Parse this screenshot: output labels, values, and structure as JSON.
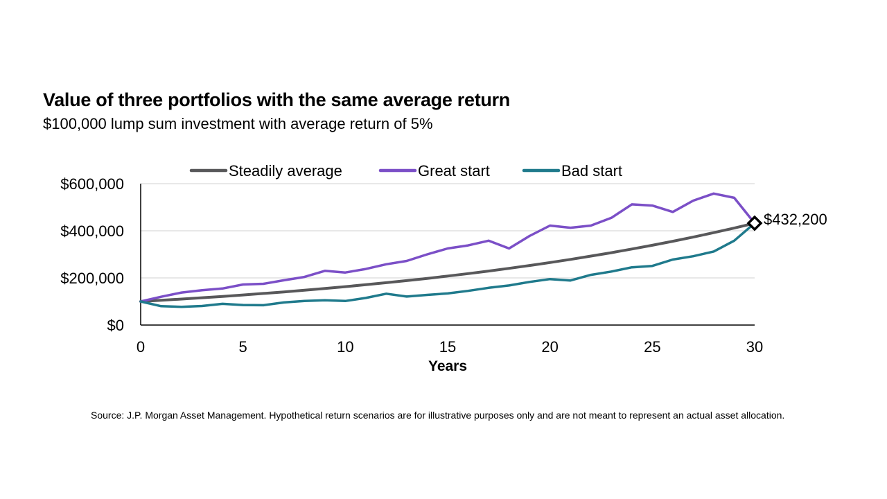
{
  "title": "Value of three portfolios with the same average return",
  "subtitle": "$100,000 lump sum investment with average return of 5%",
  "source": "Source: J.P. Morgan Asset Management. Hypothetical return scenarios are for illustrative purposes only and are not meant to represent an actual asset allocation.",
  "colors": {
    "steady": "#58585a",
    "great": "#7b4fc7",
    "bad": "#1f7a8c",
    "grid": "#d0d0d0",
    "axis": "#000000"
  },
  "chart_data": {
    "type": "line",
    "xlabel": "Years",
    "ylabel": "",
    "xlim": [
      0,
      30
    ],
    "ylim": [
      0,
      600000
    ],
    "x_ticks": [
      0,
      5,
      10,
      15,
      20,
      25,
      30
    ],
    "x_tick_labels": [
      "0",
      "5",
      "10",
      "15",
      "20",
      "25",
      "30"
    ],
    "y_ticks": [
      0,
      200000,
      400000,
      600000
    ],
    "y_tick_labels": [
      "$0",
      "$200,000",
      "$400,000",
      "$600,000"
    ],
    "grid": "horizontal",
    "legend_position": "top",
    "x": [
      0,
      1,
      2,
      3,
      4,
      5,
      6,
      7,
      8,
      9,
      10,
      11,
      12,
      13,
      14,
      15,
      16,
      17,
      18,
      19,
      20,
      21,
      22,
      23,
      24,
      25,
      26,
      27,
      28,
      29,
      30
    ],
    "series": [
      {
        "name": "Steadily average",
        "color_key": "steady",
        "values": [
          100000,
          105000,
          110250,
          115763,
          121551,
          127628,
          134010,
          140710,
          147746,
          155133,
          162889,
          171034,
          179586,
          188565,
          197993,
          207893,
          218287,
          229202,
          240662,
          252695,
          265330,
          278596,
          292526,
          307152,
          322510,
          338635,
          355567,
          373346,
          392013,
          411614,
          432200
        ]
      },
      {
        "name": "Great start",
        "color_key": "great",
        "values": [
          100000,
          120000,
          138000,
          148000,
          155000,
          172000,
          175000,
          190000,
          204000,
          230000,
          223000,
          238000,
          258000,
          272000,
          300000,
          325000,
          338000,
          358000,
          325000,
          378000,
          422000,
          413000,
          422000,
          455000,
          512000,
          507000,
          480000,
          528000,
          558000,
          540000,
          432200
        ]
      },
      {
        "name": "Bad start",
        "color_key": "bad",
        "values": [
          100000,
          80000,
          77000,
          81000,
          90000,
          85000,
          84000,
          96000,
          102000,
          105000,
          102000,
          115000,
          133000,
          121000,
          128000,
          134000,
          145000,
          158000,
          168000,
          183000,
          195000,
          189000,
          213000,
          227000,
          245000,
          251000,
          278000,
          292000,
          312000,
          358000,
          432200
        ]
      }
    ],
    "annotations": [
      {
        "x": 30,
        "y": 432200,
        "label": "$432,200",
        "marker": "diamond"
      }
    ]
  }
}
